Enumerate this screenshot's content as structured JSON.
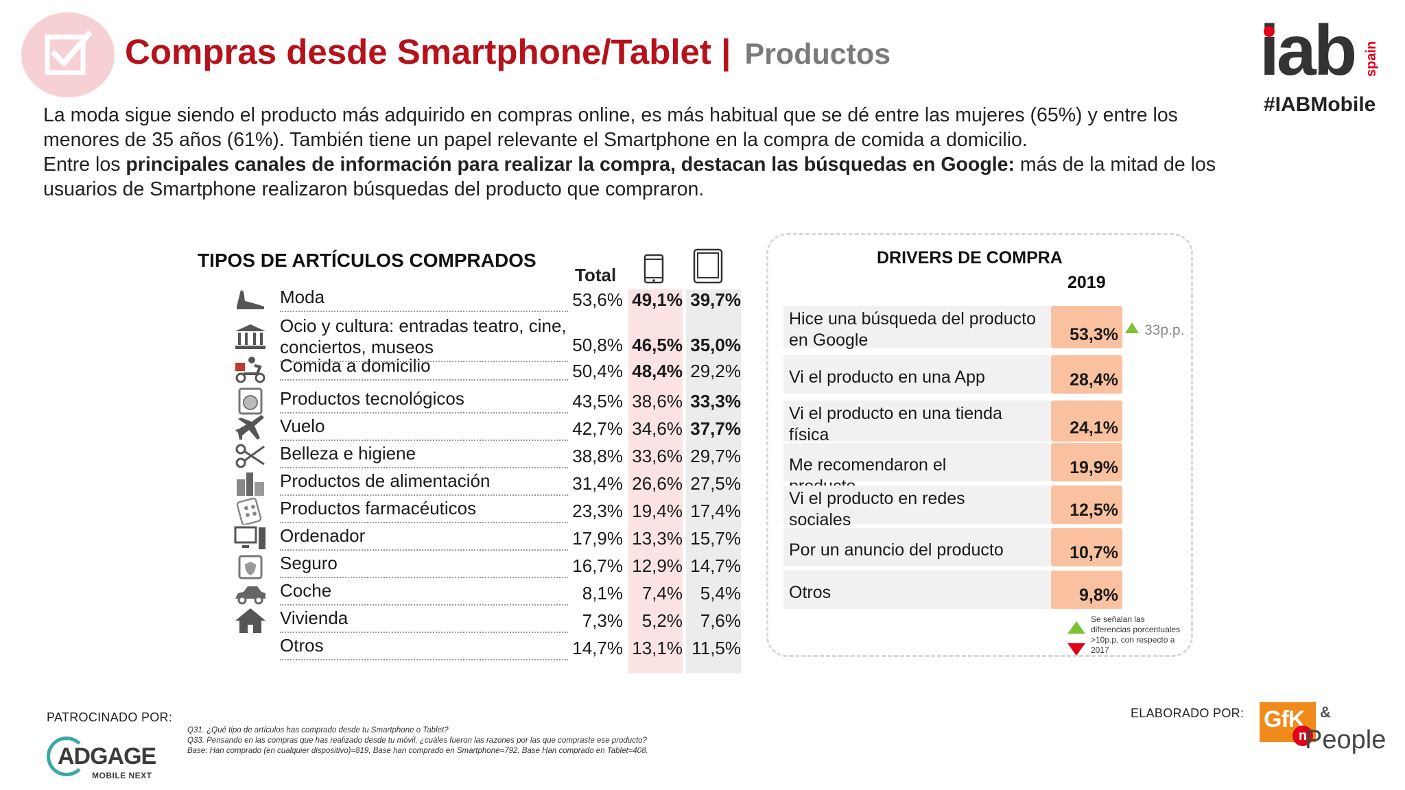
{
  "header": {
    "title_main": "Compras desde Smartphone/Tablet",
    "title_separator": "|",
    "title_sub": "Productos",
    "brand": "iab",
    "brand_region": "spain",
    "hashtag": "#IABMobile"
  },
  "intro": {
    "p1": "La moda sigue siendo el producto más adquirido en compras online, es más habitual que se dé entre las mujeres (65%) y entre los menores de 35 años (61%). También tiene un papel relevante el Smartphone en la compra de comida a domicilio.",
    "p2_start": "Entre los ",
    "p2_bold": "principales canales de información para realizar la compra, destacan las búsquedas en Google:",
    "p2_end": " más de la mitad de los usuarios de Smartphone realizaron búsquedas del producto que compraron."
  },
  "articulos": {
    "title": "TIPOS DE ARTÍCULOS COMPRADOS",
    "col_total": "Total",
    "rows": [
      {
        "label": "Moda",
        "icon": "shoe-icon",
        "total": "53,6%",
        "phone": "49,1%",
        "tablet": "39,7%",
        "phone_bold": true,
        "tablet_bold": true
      },
      {
        "label": "Ocio y cultura: entradas teatro, cine, conciertos, museos",
        "icon": "museum-icon",
        "total": "50,8%",
        "phone": "46,5%",
        "tablet": "35,0%",
        "phone_bold": true,
        "tablet_bold": true
      },
      {
        "label": "Comida a domicilio",
        "icon": "delivery-icon",
        "total": "50,4%",
        "phone": "48,4%",
        "tablet": "29,2%",
        "phone_bold": true,
        "tablet_bold": false
      },
      {
        "label": "Productos tecnológicos",
        "icon": "washer-icon",
        "total": "43,5%",
        "phone": "38,6%",
        "tablet": "33,3%",
        "phone_bold": false,
        "tablet_bold": true
      },
      {
        "label": "Vuelo",
        "icon": "plane-icon",
        "total": "42,7%",
        "phone": "34,6%",
        "tablet": "37,7%",
        "phone_bold": false,
        "tablet_bold": true
      },
      {
        "label": "Belleza e higiene",
        "icon": "scissors-icon",
        "total": "38,8%",
        "phone": "33,6%",
        "tablet": "29,7%",
        "phone_bold": false,
        "tablet_bold": false
      },
      {
        "label": "Productos de alimentación",
        "icon": "groceries-icon",
        "total": "31,4%",
        "phone": "26,6%",
        "tablet": "27,5%",
        "phone_bold": false,
        "tablet_bold": false
      },
      {
        "label": "Productos farmacéuticos",
        "icon": "pills-icon",
        "total": "23,3%",
        "phone": "19,4%",
        "tablet": "17,4%",
        "phone_bold": false,
        "tablet_bold": false
      },
      {
        "label": "Ordenador",
        "icon": "computer-icon",
        "total": "17,9%",
        "phone": "13,3%",
        "tablet": "15,7%",
        "phone_bold": false,
        "tablet_bold": false
      },
      {
        "label": "Seguro",
        "icon": "insurance-icon",
        "total": "16,7%",
        "phone": "12,9%",
        "tablet": "14,7%",
        "phone_bold": false,
        "tablet_bold": false
      },
      {
        "label": "Coche",
        "icon": "car-icon",
        "total": "8,1%",
        "phone": "7,4%",
        "tablet": "5,4%",
        "phone_bold": false,
        "tablet_bold": false
      },
      {
        "label": "Vivienda",
        "icon": "house-icon",
        "total": "7,3%",
        "phone": "5,2%",
        "tablet": "7,6%",
        "phone_bold": false,
        "tablet_bold": false
      },
      {
        "label": "Otros",
        "icon": "",
        "total": "14,7%",
        "phone": "13,1%",
        "tablet": "11,5%",
        "phone_bold": false,
        "tablet_bold": false
      }
    ]
  },
  "drivers": {
    "title": "DRIVERS DE COMPRA",
    "year": "2019",
    "rows": [
      {
        "label": "Hice una búsqueda del producto en Google",
        "value": "53,3%"
      },
      {
        "label": "Vi el producto en una App",
        "value": "28,4%"
      },
      {
        "label": "Vi el producto en una tienda física",
        "value": "24,1%"
      },
      {
        "label": "Me recomendaron el producto",
        "value": "19,9%"
      },
      {
        "label": "Vi el producto en redes sociales",
        "value": "12,5%"
      },
      {
        "label": "Por un anuncio del producto",
        "value": "10,7%"
      },
      {
        "label": "Otros",
        "value": "9,8%"
      }
    ],
    "diff_label": "33p.p.",
    "legend_note": "Se señalan las diferencias porcentuales  >10p.p. con respecto a 2017",
    "colors": {
      "up": "#7cc234",
      "down": "#e2001a",
      "bar": "#f9c19f"
    }
  },
  "footer": {
    "patrocinado": "PATROCINADO POR:",
    "sponsor_name": "ADGAGE",
    "sponsor_sub": "MOBILE NEXT",
    "note_q31": "Q31. ¿Qué tipo de artículos has comprado desde tu Smartphone o Tablet?",
    "note_q33": "Q33. Pensando en las compras que has realizado desde tu móvil, ¿cuáles fueron las razones por las que compraste ese producto?",
    "note_base": "Base: Han comprado  (en cualquier dispositivo)=819, Base han comprado en Smartphone=792, Base Han comprado  en Tablet=408.",
    "elaborado": "ELABORADO POR:",
    "agency_gfk": "GfK",
    "agency_amp": "&",
    "agency_people": "People",
    "agency_n": "n"
  },
  "colors": {
    "title_red": "#b5121b",
    "phone_col": "#fbe3e4",
    "tablet_col": "#ececec"
  }
}
